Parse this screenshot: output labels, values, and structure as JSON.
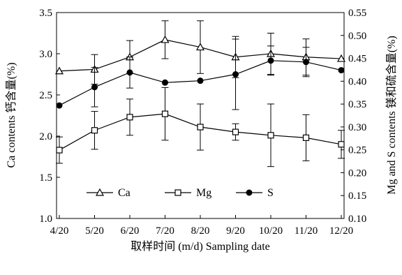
{
  "chart_data": {
    "type": "line",
    "categories": [
      "4/20",
      "5/20",
      "6/20",
      "7/20",
      "8/20",
      "9/20",
      "10/20",
      "11/20",
      "12/20"
    ],
    "xlabel": "取样时间 (m/d) Sampling date",
    "ylabel_left": "Ca contents 钙含量(%)",
    "ylabel_right": "Mg and S contents 镁和硫含量(%)",
    "ylim_left": [
      1.0,
      3.5
    ],
    "ylim_right": [
      0.1,
      0.55
    ],
    "yticks_left": [
      "1.0",
      "1.5",
      "2.0",
      "2.5",
      "3.0",
      "3.5"
    ],
    "yticks_right": [
      "0.10",
      "0.15",
      "0.20",
      "0.25",
      "0.30",
      "0.35",
      "0.40",
      "0.45",
      "0.50",
      "0.55"
    ],
    "grid": false,
    "legend_position": "bottom-center",
    "series": [
      {
        "name": "Ca",
        "axis": "left",
        "marker": "triangle",
        "values": [
          2.79,
          2.81,
          2.96,
          3.17,
          3.08,
          2.96,
          3.0,
          2.96,
          2.94
        ],
        "error": [
          0.0,
          0.18,
          0.2,
          0.23,
          0.32,
          0.25,
          0.25,
          0.22,
          0.0
        ]
      },
      {
        "name": "Mg",
        "axis": "left",
        "marker": "square",
        "values": [
          1.83,
          2.07,
          2.23,
          2.27,
          2.11,
          2.05,
          2.01,
          1.98,
          1.9
        ],
        "error": [
          0.16,
          0.23,
          0.22,
          0.32,
          0.28,
          0.1,
          0.38,
          0.28,
          0.17
        ]
      },
      {
        "name": "S",
        "axis": "right",
        "marker": "circle",
        "values": [
          0.347,
          0.387,
          0.419,
          0.397,
          0.401,
          0.415,
          0.445,
          0.442,
          0.424
        ],
        "error": [
          0.0,
          0.043,
          0.034,
          0.0,
          0.0,
          0.077,
          0.032,
          0.032,
          0.0
        ]
      }
    ]
  }
}
